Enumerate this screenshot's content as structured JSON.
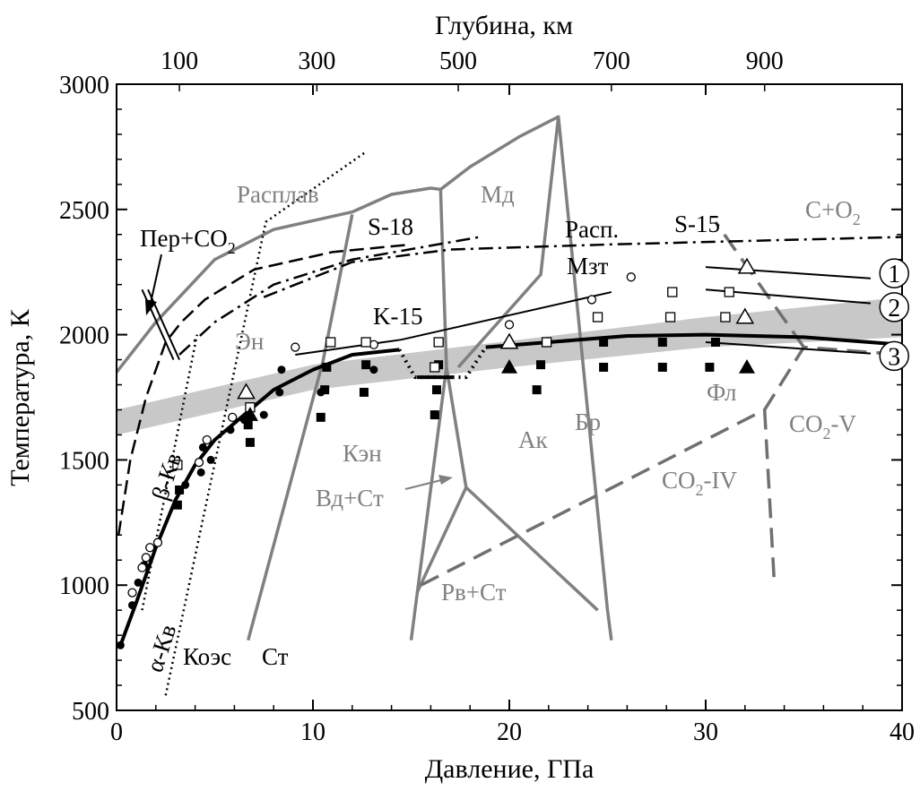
{
  "chart_data": {
    "type": "scatter",
    "xlabel": "Давление, ГПа",
    "ylabel": "Температура, К",
    "x2label": "Глубина, км",
    "xlim": [
      0,
      40
    ],
    "ylim": [
      500,
      3000
    ],
    "x_ticks": [
      "0",
      "10",
      "20",
      "30",
      "40"
    ],
    "y_ticks": [
      "500",
      "1000",
      "1500",
      "2000",
      "2500",
      "3000"
    ],
    "top_ticks": [
      {
        "label": "100",
        "pressure": 3.2
      },
      {
        "label": "300",
        "pressure": 10.2
      },
      {
        "label": "500",
        "pressure": 17.4
      },
      {
        "label": "700",
        "pressure": 25.2
      },
      {
        "label": "900",
        "pressure": 33.0
      }
    ],
    "grey_band": {
      "color": "#c8c8c8",
      "lower": [
        [
          0,
          1600
        ],
        [
          10,
          1780
        ],
        [
          20,
          1870
        ],
        [
          30,
          1950
        ],
        [
          40,
          1990
        ]
      ],
      "upper": [
        [
          0,
          1700
        ],
        [
          10,
          1880
        ],
        [
          20,
          1975
        ],
        [
          30,
          2070
        ],
        [
          40,
          2150
        ]
      ]
    },
    "series": [
      {
        "style": "grey-solid",
        "color": "#808080",
        "points": [
          [
            0,
            1850
          ],
          [
            2,
            2050
          ],
          [
            5,
            2300
          ],
          [
            8,
            2420
          ],
          [
            12,
            2490
          ],
          [
            14,
            2560
          ],
          [
            16,
            2585
          ],
          [
            16.5,
            2580
          ]
        ]
      },
      {
        "style": "grey-solid",
        "color": "#808080",
        "points": [
          [
            6.7,
            780
          ],
          [
            10.5,
            1890
          ],
          [
            12,
            2480
          ]
        ]
      },
      {
        "style": "grey-solid",
        "color": "#808080",
        "points": [
          [
            16.5,
            2580
          ],
          [
            16.8,
            1870
          ],
          [
            15.0,
            780
          ]
        ]
      },
      {
        "style": "grey-solid",
        "color": "#808080",
        "points": [
          [
            16.5,
            2580
          ],
          [
            18,
            2670
          ],
          [
            20.5,
            2790
          ],
          [
            22.5,
            2870
          ],
          [
            21.6,
            2240
          ],
          [
            17.4,
            1870
          ]
        ]
      },
      {
        "style": "grey-solid",
        "color": "#808080",
        "points": [
          [
            22.5,
            2870
          ],
          [
            25,
            900
          ],
          [
            25.2,
            780
          ]
        ]
      },
      {
        "style": "grey-solid",
        "color": "#808080",
        "points": [
          [
            16.8,
            1870
          ],
          [
            17.8,
            1390
          ],
          [
            15.3,
            970
          ]
        ]
      },
      {
        "style": "grey-solid",
        "color": "#808080",
        "points": [
          [
            17.8,
            1390
          ],
          [
            24.5,
            900
          ]
        ]
      },
      {
        "style": "grey-dashed",
        "color": "#707070",
        "points": [
          [
            15.5,
            1000
          ],
          [
            33,
            1700
          ],
          [
            35,
            1950
          ],
          [
            40,
            1920
          ]
        ]
      },
      {
        "style": "grey-dashed",
        "color": "#707070",
        "points": [
          [
            33,
            1700
          ],
          [
            33.5,
            1000
          ]
        ]
      },
      {
        "style": "grey-dashed",
        "color": "#707070",
        "points": [
          [
            35,
            1950
          ],
          [
            30.5,
            2450
          ]
        ]
      },
      {
        "style": "black-dashdot",
        "color": "#000000",
        "points": [
          [
            7.5,
            2150
          ],
          [
            12,
            2290
          ],
          [
            17,
            2340
          ],
          [
            25,
            2360
          ],
          [
            40,
            2390
          ]
        ]
      },
      {
        "style": "black-dashdot",
        "color": "#000000",
        "points": [
          [
            3.2,
            1920
          ],
          [
            5,
            2050
          ],
          [
            8,
            2200
          ],
          [
            12,
            2300
          ],
          [
            18.5,
            2390
          ]
        ]
      },
      {
        "style": "black-dash",
        "color": "#000000",
        "points": [
          [
            0.1,
            1200
          ],
          [
            0.7,
            1500
          ],
          [
            1.5,
            1750
          ],
          [
            2.5,
            1970
          ],
          [
            3.3,
            2050
          ],
          [
            4.5,
            2140
          ],
          [
            7,
            2260
          ],
          [
            11,
            2330
          ],
          [
            15,
            2360
          ]
        ]
      },
      {
        "style": "black-dotted",
        "color": "#000000",
        "points": [
          [
            2.5,
            560
          ],
          [
            7.6,
            2450
          ],
          [
            12.7,
            2730
          ]
        ]
      },
      {
        "style": "black-dotted",
        "color": "#000000",
        "points": [
          [
            1.3,
            900
          ],
          [
            4.1,
            2000
          ]
        ]
      },
      {
        "style": "black-thin",
        "color": "#000000",
        "points": [
          [
            9.1,
            1920
          ],
          [
            14.5,
            1980
          ],
          [
            25.2,
            2170
          ]
        ]
      },
      {
        "style": "black-thin",
        "color": "#000000",
        "points": [
          [
            30,
            2270
          ],
          [
            38.4,
            2225
          ]
        ]
      },
      {
        "style": "black-thin",
        "color": "#000000",
        "points": [
          [
            30,
            2180
          ],
          [
            38.4,
            2125
          ]
        ]
      },
      {
        "style": "black-thin",
        "color": "#000000",
        "points": [
          [
            30,
            1970
          ],
          [
            38.4,
            1925
          ]
        ]
      },
      {
        "style": "black-thick",
        "color": "#000000",
        "points": [
          [
            0.2,
            760
          ],
          [
            1,
            930
          ],
          [
            2,
            1150
          ],
          [
            3,
            1340
          ],
          [
            4,
            1480
          ],
          [
            5,
            1580
          ],
          [
            6.5,
            1680
          ],
          [
            8,
            1780
          ],
          [
            10,
            1860
          ],
          [
            12,
            1920
          ],
          [
            14.4,
            1940
          ]
        ]
      },
      {
        "style": "black-thick-dotted",
        "color": "#000000",
        "points": [
          [
            14.4,
            1940
          ],
          [
            15.2,
            1830
          ],
          [
            17.8,
            1830
          ],
          [
            18.8,
            1950
          ]
        ]
      },
      {
        "style": "black-thick",
        "color": "#000000",
        "points": [
          [
            18.8,
            1950
          ],
          [
            22,
            1970
          ],
          [
            26,
            1995
          ],
          [
            30,
            2000
          ],
          [
            35,
            1990
          ],
          [
            40,
            1960
          ]
        ]
      },
      {
        "style": "black-thick",
        "color": "#000000",
        "points": [
          [
            15.3,
            1830
          ],
          [
            17.2,
            1830
          ]
        ]
      }
    ],
    "markers": {
      "filled_circle": [
        [
          0.2,
          760
        ],
        [
          0.8,
          920
        ],
        [
          1.1,
          1010
        ],
        [
          1.4,
          1080
        ],
        [
          3.5,
          1400
        ],
        [
          4.3,
          1450
        ],
        [
          4.4,
          1550
        ],
        [
          4.8,
          1500
        ],
        [
          5.8,
          1620
        ],
        [
          6.5,
          1660
        ],
        [
          7.5,
          1680
        ],
        [
          8.3,
          1770
        ],
        [
          8.4,
          1860
        ],
        [
          10.4,
          1770
        ],
        [
          13.1,
          1860
        ]
      ],
      "open_circle": [
        [
          0.8,
          970
        ],
        [
          1.3,
          1070
        ],
        [
          1.5,
          1110
        ],
        [
          1.7,
          1150
        ],
        [
          2.1,
          1170
        ],
        [
          4.2,
          1490
        ],
        [
          4.6,
          1580
        ],
        [
          5.9,
          1670
        ],
        [
          9.1,
          1950
        ],
        [
          13.1,
          1960
        ],
        [
          20,
          2040
        ],
        [
          24.2,
          2140
        ],
        [
          26.2,
          2230
        ]
      ],
      "filled_square": [
        [
          3.1,
          1320
        ],
        [
          3.2,
          1380
        ],
        [
          6.7,
          1640
        ],
        [
          6.8,
          1570
        ],
        [
          10.4,
          1670
        ],
        [
          10.6,
          1780
        ],
        [
          10.7,
          1870
        ],
        [
          12.6,
          1770
        ],
        [
          12.7,
          1880
        ],
        [
          16.2,
          1680
        ],
        [
          16.3,
          1780
        ],
        [
          16.4,
          1880
        ],
        [
          21.4,
          1780
        ],
        [
          21.6,
          1880
        ],
        [
          24.8,
          1870
        ],
        [
          24.8,
          1970
        ],
        [
          27.8,
          1870
        ],
        [
          27.8,
          1970
        ],
        [
          30.2,
          1870
        ],
        [
          30.5,
          1970
        ]
      ],
      "open_square": [
        [
          3.1,
          1480
        ],
        [
          6.8,
          1710
        ],
        [
          10.9,
          1970
        ],
        [
          12.7,
          1970
        ],
        [
          16.2,
          1870
        ],
        [
          16.4,
          1970
        ],
        [
          21.9,
          1970
        ],
        [
          24.5,
          2070
        ],
        [
          28.2,
          2070
        ],
        [
          28.3,
          2170
        ],
        [
          31,
          2070
        ],
        [
          31.2,
          2170
        ]
      ],
      "filled_triangle": [
        [
          6.8,
          1680
        ],
        [
          20,
          1870
        ],
        [
          32.1,
          1870
        ]
      ],
      "open_triangle": [
        [
          6.6,
          1770
        ],
        [
          20,
          1970
        ],
        [
          32,
          2070
        ],
        [
          32.1,
          2270
        ]
      ]
    },
    "numbered_labels": [
      {
        "text": "1",
        "x": 39.6,
        "y": 2245
      },
      {
        "text": "2",
        "x": 39.6,
        "y": 2110
      },
      {
        "text": "3",
        "x": 39.6,
        "y": 1915
      }
    ],
    "annotations": {
      "melt": "Расплав",
      "per": "Пер+CO",
      "per_sub": "2",
      "s18": "S-18",
      "md": "Мд",
      "rasp": "Расп.",
      "s15": "S-15",
      "co2": "C+O",
      "co2_sub": "2",
      "mzt": "Мзт",
      "en": "Эн",
      "k15": "K-15",
      "ken": "Кэн",
      "ak": "Ак",
      "br": "Бр",
      "fl": "Фл",
      "co2v": "CO",
      "co2v_sub": "2",
      "co2v_tail": "-V",
      "co2iv": "CO",
      "co2iv_sub": "2",
      "co2iv_tail": "-IV",
      "beta_kv": "β-Кв",
      "alpha_kv": "α-Кв",
      "vd_st": "Вд+Ст",
      "rv_st": "Рв+Ст",
      "coes": "Коэс",
      "st": "Ст"
    }
  }
}
